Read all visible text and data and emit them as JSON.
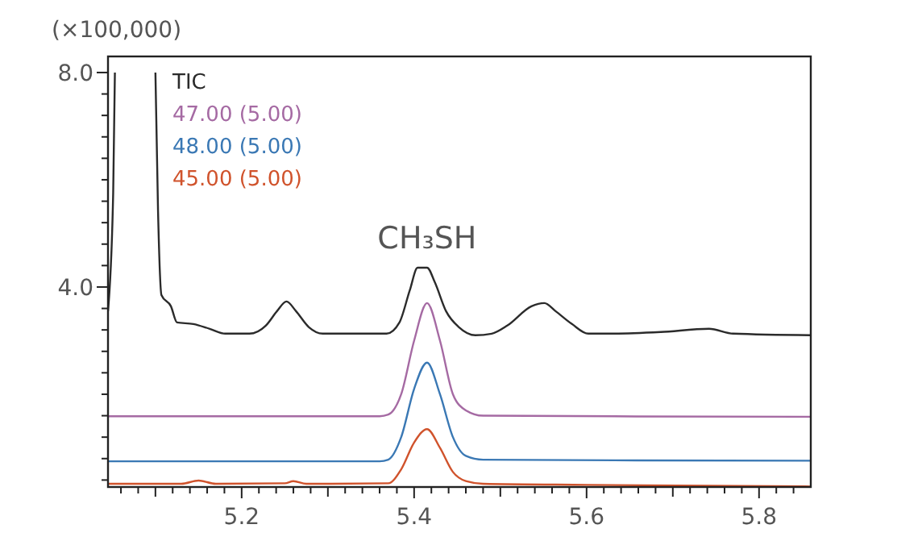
{
  "chart_data": {
    "type": "line",
    "ylabel": "(×100,000)",
    "legend": "top left",
    "grid": false,
    "marker": "none",
    "line_style": "solid",
    "xlim": [
      5.045,
      5.86
    ],
    "ylim": [
      0.27,
      8.3
    ],
    "xticks": [
      {
        "value": 5.06,
        "label": null
      },
      {
        "value": 5.08,
        "label": null
      },
      {
        "value": 5.1,
        "label": null
      },
      {
        "value": 5.12,
        "label": null
      },
      {
        "value": 5.14,
        "label": null
      },
      {
        "value": 5.16,
        "label": null
      },
      {
        "value": 5.18,
        "label": null
      },
      {
        "value": 5.2,
        "label": "5.2"
      },
      {
        "value": 5.22,
        "label": null
      },
      {
        "value": 5.24,
        "label": null
      },
      {
        "value": 5.26,
        "label": null
      },
      {
        "value": 5.28,
        "label": null
      },
      {
        "value": 5.3,
        "label": null
      },
      {
        "value": 5.32,
        "label": null
      },
      {
        "value": 5.34,
        "label": null
      },
      {
        "value": 5.36,
        "label": null
      },
      {
        "value": 5.38,
        "label": null
      },
      {
        "value": 5.4,
        "label": "5.4"
      },
      {
        "value": 5.42,
        "label": null
      },
      {
        "value": 5.44,
        "label": null
      },
      {
        "value": 5.46,
        "label": null
      },
      {
        "value": 5.48,
        "label": null
      },
      {
        "value": 5.5,
        "label": null
      },
      {
        "value": 5.52,
        "label": null
      },
      {
        "value": 5.54,
        "label": null
      },
      {
        "value": 5.56,
        "label": null
      },
      {
        "value": 5.58,
        "label": null
      },
      {
        "value": 5.6,
        "label": "5.6"
      },
      {
        "value": 5.62,
        "label": null
      },
      {
        "value": 5.64,
        "label": null
      },
      {
        "value": 5.66,
        "label": null
      },
      {
        "value": 5.68,
        "label": null
      },
      {
        "value": 5.7,
        "label": null
      },
      {
        "value": 5.72,
        "label": null
      },
      {
        "value": 5.74,
        "label": null
      },
      {
        "value": 5.76,
        "label": null
      },
      {
        "value": 5.78,
        "label": null
      },
      {
        "value": 5.8,
        "label": "5.8"
      },
      {
        "value": 5.82,
        "label": null
      },
      {
        "value": 5.84,
        "label": null
      }
    ],
    "yticks": [
      {
        "value": 0.4,
        "label": null
      },
      {
        "value": 0.8,
        "label": null
      },
      {
        "value": 1.2,
        "label": null
      },
      {
        "value": 1.6,
        "label": null
      },
      {
        "value": 2.0,
        "label": null
      },
      {
        "value": 2.4,
        "label": null
      },
      {
        "value": 2.8,
        "label": null
      },
      {
        "value": 3.2,
        "label": null
      },
      {
        "value": 3.6,
        "label": null
      },
      {
        "value": 4.0,
        "label": "4.0"
      },
      {
        "value": 4.4,
        "label": null
      },
      {
        "value": 4.8,
        "label": null
      },
      {
        "value": 5.2,
        "label": null
      },
      {
        "value": 5.6,
        "label": null
      },
      {
        "value": 6.0,
        "label": null
      },
      {
        "value": 6.4,
        "label": null
      },
      {
        "value": 6.8,
        "label": null
      },
      {
        "value": 7.2,
        "label": null
      },
      {
        "value": 7.6,
        "label": null
      },
      {
        "value": 8.0,
        "label": "8.0"
      }
    ],
    "annotations": [
      {
        "text": "CH₃SH",
        "x": 5.415,
        "y": 4.36
      }
    ],
    "series": [
      {
        "name": "TIC",
        "color": "#2b2b2b",
        "x": [
          5.045,
          5.051,
          5.053,
          5.076,
          5.1,
          5.103,
          5.107,
          5.118,
          5.125,
          5.144,
          5.163,
          5.181,
          5.209,
          5.228,
          5.241,
          5.252,
          5.263,
          5.278,
          5.294,
          5.368,
          5.383,
          5.395,
          5.404,
          5.415,
          5.424,
          5.437,
          5.452,
          5.471,
          5.49,
          5.508,
          5.536,
          5.551,
          5.564,
          5.583,
          5.602,
          5.63,
          5.686,
          5.742,
          5.77,
          5.86
        ],
        "values": [
          3.55,
          5.74,
          8.0,
          null,
          8.0,
          5.44,
          3.85,
          3.64,
          3.34,
          3.31,
          3.22,
          3.13,
          3.13,
          3.28,
          3.55,
          3.73,
          3.55,
          3.25,
          3.13,
          3.13,
          3.34,
          3.94,
          4.36,
          4.36,
          4.09,
          3.55,
          3.25,
          3.1,
          3.13,
          3.28,
          3.64,
          3.7,
          3.55,
          3.31,
          3.13,
          3.13,
          3.16,
          3.22,
          3.13,
          3.1
        ]
      },
      {
        "name": "47.00 (5.00)",
        "color": "#a56aa3",
        "x": [
          5.045,
          5.36,
          5.37,
          5.385,
          5.4,
          5.415,
          5.43,
          5.445,
          5.46,
          5.48,
          5.86
        ],
        "values": [
          1.59,
          1.59,
          1.62,
          2.0,
          3.0,
          3.7,
          3.0,
          2.0,
          1.7,
          1.6,
          1.58
        ]
      },
      {
        "name": "48.00 (5.00)",
        "color": "#3a78b4",
        "x": [
          5.045,
          5.36,
          5.37,
          5.385,
          5.4,
          5.415,
          5.43,
          5.445,
          5.46,
          5.48,
          5.86
        ],
        "values": [
          0.75,
          0.75,
          0.78,
          1.2,
          2.1,
          2.59,
          2.0,
          1.2,
          0.85,
          0.78,
          0.76
        ]
      },
      {
        "name": "45.00 (5.00)",
        "color": "#d0532c",
        "x": [
          5.045,
          5.13,
          5.15,
          5.17,
          5.25,
          5.26,
          5.275,
          5.37,
          5.385,
          5.4,
          5.415,
          5.43,
          5.445,
          5.46,
          5.48,
          5.6,
          5.86
        ],
        "values": [
          0.33,
          0.33,
          0.39,
          0.33,
          0.34,
          0.38,
          0.33,
          0.34,
          0.6,
          1.1,
          1.35,
          1.0,
          0.55,
          0.38,
          0.33,
          0.31,
          0.28
        ]
      }
    ]
  }
}
